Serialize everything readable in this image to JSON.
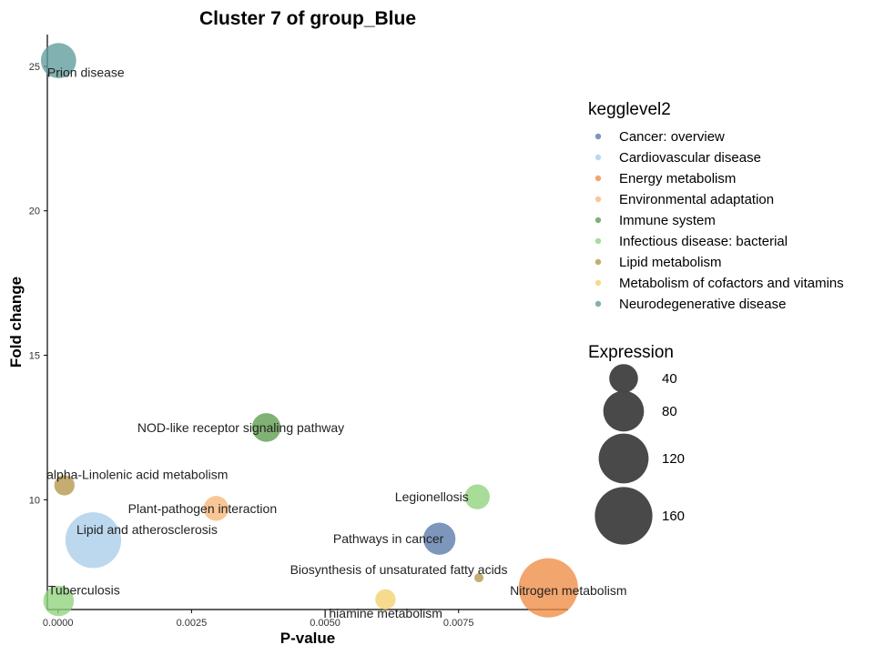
{
  "chart_data": {
    "type": "scatter",
    "title": "Cluster 7 of group_Blue",
    "xlabel": "P-value",
    "ylabel": "Fold change",
    "xlim": [
      -0.0002,
      0.00955
    ],
    "ylim": [
      6.2,
      26.1
    ],
    "xticks": [
      0.0,
      0.0025,
      0.005,
      0.0075
    ],
    "xtick_labels": [
      "0.0000",
      "0.0025",
      "0.0050",
      "0.0075"
    ],
    "yticks": [
      10,
      15,
      20,
      25
    ],
    "ytick_labels": [
      "10",
      "15",
      "20",
      "25"
    ],
    "grid": false,
    "legend_position": "right",
    "color_legend": {
      "title": "kegglevel2",
      "entries": [
        {
          "name": "Cancer: overview",
          "color": "#5878a8"
        },
        {
          "name": "Cardiovascular disease",
          "color": "#a9cde9"
        },
        {
          "name": "Energy metabolism",
          "color": "#f08c45"
        },
        {
          "name": "Environmental adaptation",
          "color": "#f7b779"
        },
        {
          "name": "Immune system",
          "color": "#5c9e4c"
        },
        {
          "name": "Infectious disease: bacterial",
          "color": "#8ed27c"
        },
        {
          "name": "Lipid metabolism",
          "color": "#b5964a"
        },
        {
          "name": "Metabolism of cofactors and vitamins",
          "color": "#f4cf6d"
        },
        {
          "name": "Neurodegenerative disease",
          "color": "#5f9b9b"
        }
      ]
    },
    "size_legend": {
      "title": "Expression",
      "values": [
        40,
        80,
        120,
        160
      ],
      "labels": [
        "40",
        "80",
        "120",
        "160"
      ],
      "color": "#454545"
    },
    "points": [
      {
        "name": "Prion disease",
        "x": 1e-05,
        "y": 25.2,
        "expression": 60,
        "category": "Neurodegenerative disease"
      },
      {
        "name": "NOD-like receptor signaling pathway",
        "x": 0.0039,
        "y": 12.5,
        "expression": 40,
        "category": "Immune system"
      },
      {
        "name": "alpha-Linolenic acid metabolism",
        "x": 0.00012,
        "y": 10.5,
        "expression": 20,
        "category": "Lipid metabolism"
      },
      {
        "name": "Legionellosis",
        "x": 0.00785,
        "y": 10.1,
        "expression": 30,
        "category": "Infectious disease: bacterial"
      },
      {
        "name": "Plant-pathogen interaction",
        "x": 0.00296,
        "y": 9.7,
        "expression": 30,
        "category": "Environmental adaptation"
      },
      {
        "name": "Lipid and atherosclerosis",
        "x": 0.00066,
        "y": 8.6,
        "expression": 150,
        "category": "Cardiovascular disease"
      },
      {
        "name": "Pathways in cancer",
        "x": 0.00714,
        "y": 8.65,
        "expression": 50,
        "category": "Cancer: overview"
      },
      {
        "name": "Biosynthesis of unsaturated fatty acids",
        "x": 0.00788,
        "y": 7.3,
        "expression": 4,
        "category": "Lipid metabolism"
      },
      {
        "name": "Nitrogen metabolism",
        "x": 0.00918,
        "y": 6.95,
        "expression": 170,
        "category": "Energy metabolism"
      },
      {
        "name": "Tuberculosis",
        "x": 1e-05,
        "y": 6.5,
        "expression": 45,
        "category": "Infectious disease: bacterial"
      },
      {
        "name": "Thiamine metabolism",
        "x": 0.00613,
        "y": 6.55,
        "expression": 20,
        "category": "Metabolism of cofactors and vitamins"
      }
    ]
  }
}
